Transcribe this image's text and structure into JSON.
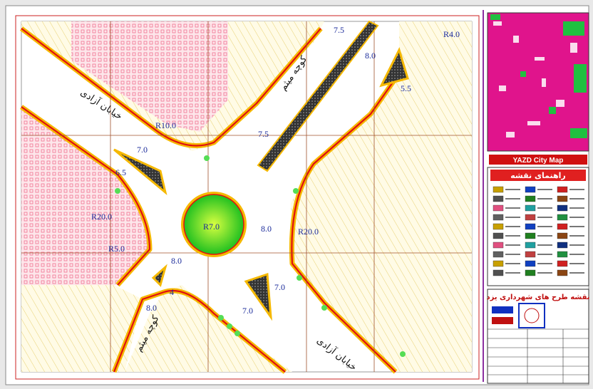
{
  "map": {
    "streets": [
      "خیابان آزادی",
      "کوچه میثم",
      "کوچه میثم",
      "خیابان آزادی"
    ],
    "dimensions": [
      "7.5",
      "8.0",
      "R4.0",
      "5.5",
      "R10.0",
      "7.5",
      "7.0",
      "6.5",
      "R20.0",
      "R7.0",
      "8.0",
      "R20.0",
      "R5.0",
      "8.0",
      "7.0",
      "7.0",
      "8.0",
      "4"
    ]
  },
  "inset": {
    "caption": "YAZD City Map"
  },
  "legend": {
    "title": "راهنمای نقشه"
  },
  "title_block": {
    "title": "نقشه طرح های شهرداری یزد"
  }
}
